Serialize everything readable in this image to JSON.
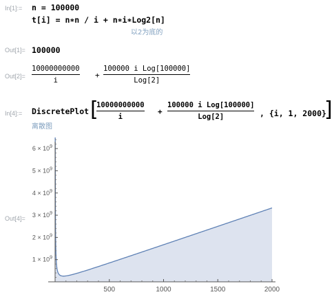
{
  "cell1": {
    "in_label": "In[1]:=",
    "line1": "n = 100000",
    "line2": "t[i] = n∗n / i + n∗i∗Log2[n]",
    "hint": "以2为底的"
  },
  "out1": {
    "label": "Out[1]=",
    "value": "100000"
  },
  "out2": {
    "label": "Out[2]=",
    "frac1_num": "10000000000",
    "frac1_den": "i",
    "plus": "+",
    "frac2_num": "100000 i Log[100000]",
    "frac2_den": "Log[2]"
  },
  "cell4": {
    "in_label": "In[4]:=",
    "func": "DiscretePlot",
    "frac1_num": "10000000000",
    "frac1_den": "i",
    "plus": "+",
    "frac2_num": "100000 i Log[100000]",
    "frac2_den": "Log[2]",
    "tail": ", {i, 1, 2000}",
    "hint": "离散图"
  },
  "out4": {
    "label": "Out[4]="
  },
  "chart_data": {
    "type": "area",
    "title": "",
    "xlabel": "",
    "ylabel": "",
    "xlim": [
      0,
      2000
    ],
    "ylim": [
      0,
      6500000000
    ],
    "x_ticks": [
      500,
      1000,
      1500,
      2000
    ],
    "x_tick_labels": [
      "500",
      "1000",
      "1500",
      "2000"
    ],
    "y_ticks": [
      1000000000,
      2000000000,
      3000000000,
      4000000000,
      5000000000,
      6000000000
    ],
    "y_tick_labels": [
      {
        "mant": "1",
        "exp": "9"
      },
      {
        "mant": "2",
        "exp": "9"
      },
      {
        "mant": "3",
        "exp": "9"
      },
      {
        "mant": "4",
        "exp": "9"
      },
      {
        "mant": "5",
        "exp": "9"
      },
      {
        "mant": "6",
        "exp": "9"
      }
    ],
    "series_color": "#5e81b5",
    "fill_color": "#dde3ef",
    "function": "10000000000/i + 100000*i*Log2(100000)",
    "domain": [
      1,
      2000
    ]
  }
}
